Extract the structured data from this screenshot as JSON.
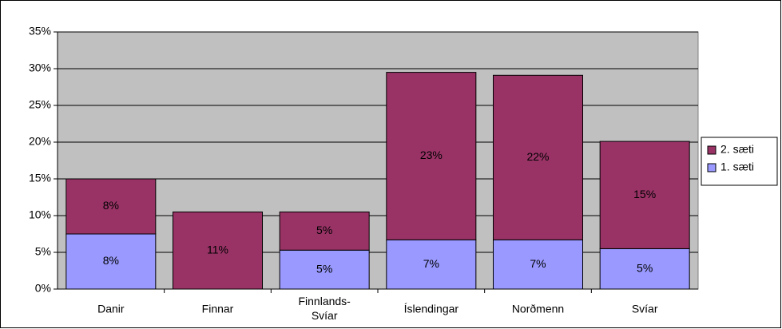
{
  "chart_data": {
    "type": "stacked_bar",
    "categories": [
      "Danir",
      "Finnar",
      "Finnlands-\nSvíar",
      "Íslendingar",
      "Norðmenn",
      "Svíar"
    ],
    "series": [
      {
        "name": "1. sæti",
        "color": "#9999ff",
        "values": [
          7.5,
          0,
          5.3,
          6.7,
          6.7,
          5.5
        ],
        "value_labels": [
          "8%",
          null,
          "5%",
          "7%",
          "7%",
          "5%"
        ]
      },
      {
        "name": "2. sæti",
        "color": "#993366",
        "values": [
          7.5,
          10.5,
          5.2,
          22.8,
          22.4,
          14.6
        ],
        "value_labels": [
          "8%",
          "11%",
          "5%",
          "23%",
          "22%",
          "15%"
        ]
      }
    ],
    "ylim": [
      0,
      35
    ],
    "yticks": [
      {
        "value": 0,
        "label": "0%"
      },
      {
        "value": 5,
        "label": "5%"
      },
      {
        "value": 10,
        "label": "10%"
      },
      {
        "value": 15,
        "label": "15%"
      },
      {
        "value": 20,
        "label": "20%"
      },
      {
        "value": 25,
        "label": "25%"
      },
      {
        "value": 30,
        "label": "30%"
      },
      {
        "value": 35,
        "label": "35%"
      }
    ],
    "grid": true,
    "plot_background": "#c0c0c0",
    "legend": "right"
  }
}
